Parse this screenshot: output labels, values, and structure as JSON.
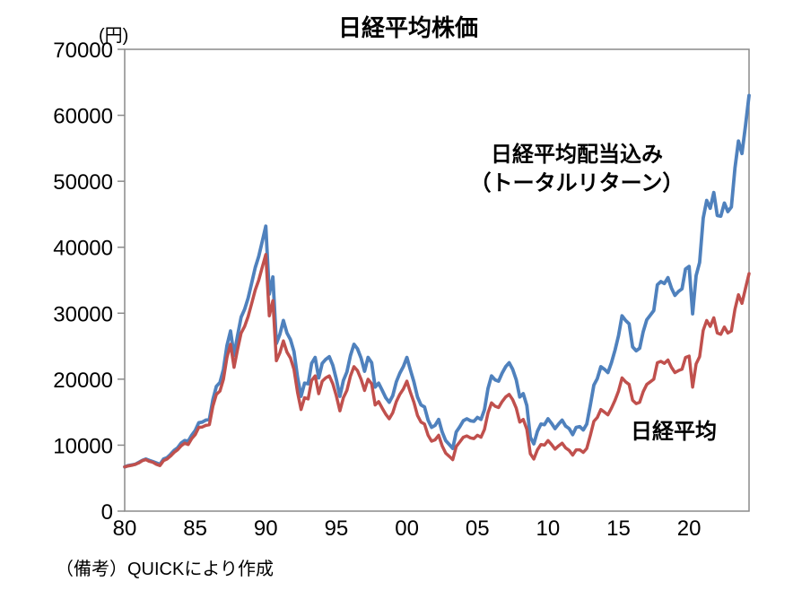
{
  "page": {
    "background_color": "#ffffff"
  },
  "chart_data": {
    "type": "line",
    "title": "日経平均株価",
    "unit_label": "(円)",
    "footnote": "（備考）QUICKにより作成",
    "xlabel": "",
    "ylabel": "",
    "ylim": [
      0,
      70000
    ],
    "xlim": [
      1980,
      2024.25
    ],
    "grid": false,
    "legend_position": "inline-annotations",
    "axis_color": "#8a8a8a",
    "text_color": "#000000",
    "y_ticks": [
      0,
      10000,
      20000,
      30000,
      40000,
      50000,
      60000,
      70000
    ],
    "y_tick_labels": [
      "0",
      "10000",
      "20000",
      "30000",
      "40000",
      "50000",
      "60000",
      "70000"
    ],
    "x_ticks": [
      1980,
      1985,
      1990,
      1995,
      2000,
      2005,
      2010,
      2015,
      2020
    ],
    "x_tick_labels": [
      "80",
      "85",
      "90",
      "95",
      "00",
      "05",
      "10",
      "15",
      "20"
    ],
    "x_start": 1980,
    "x_step": 0.25,
    "series": [
      {
        "name": "日経平均配当込み（トータルリターン）",
        "label_lines": [
          "日経平均配当込み",
          "（トータルリターン）"
        ],
        "color": "#4f81bd",
        "label_color": "#4f81bd",
        "line_width": 3.8,
        "values": [
          6700,
          6900,
          7000,
          7100,
          7400,
          7700,
          7900,
          7700,
          7500,
          7300,
          7100,
          7900,
          8100,
          8600,
          9200,
          9600,
          10300,
          10700,
          10600,
          11500,
          12200,
          13400,
          13500,
          13800,
          13900,
          16900,
          18900,
          19500,
          21500,
          25100,
          27300,
          23600,
          26600,
          29400,
          30600,
          32300,
          34600,
          36900,
          38600,
          40900,
          43200,
          32900,
          35500,
          25400,
          26800,
          28900,
          27000,
          26000,
          24200,
          20300,
          17400,
          19400,
          19300,
          22400,
          23300,
          20200,
          22400,
          23000,
          23400,
          22100,
          20000,
          17400,
          19800,
          21100,
          23600,
          25300,
          24600,
          23200,
          21200,
          23300,
          22500,
          18800,
          19400,
          18300,
          17200,
          16500,
          17500,
          19600,
          20900,
          21900,
          23300,
          21400,
          19600,
          17300,
          16100,
          15800,
          13800,
          12700,
          13000,
          13900,
          12000,
          10700,
          10100,
          9500,
          12000,
          12800,
          13700,
          14000,
          13700,
          13600,
          14200,
          13900,
          15400,
          18600,
          20500,
          19900,
          19700,
          20900,
          21900,
          22500,
          21500,
          19900,
          17300,
          17800,
          16000,
          11200,
          10200,
          12100,
          13200,
          13100,
          14000,
          13300,
          12500,
          13200,
          13800,
          12900,
          12500,
          11600,
          12700,
          12800,
          12300,
          13200,
          16100,
          19100,
          20100,
          21900,
          21500,
          21000,
          22500,
          24400,
          26600,
          29600,
          28900,
          28400,
          24900,
          24300,
          24700,
          27200,
          29000,
          29700,
          30400,
          34300,
          34800,
          34500,
          35400,
          33800,
          32700,
          33300,
          33700,
          36700,
          37100,
          29900,
          35700,
          37700,
          44400,
          47100,
          45900,
          48300,
          44800,
          44700,
          46700,
          45400,
          46100,
          52000,
          56100,
          54200,
          58500,
          63000
        ]
      },
      {
        "name": "日経平均",
        "label_lines": [
          "日経平均"
        ],
        "color": "#c0504d",
        "label_color": "#ff3b30",
        "line_width": 3.5,
        "values": [
          6700,
          6850,
          6950,
          7100,
          7300,
          7650,
          7800,
          7550,
          7400,
          7100,
          6900,
          7650,
          7900,
          8350,
          8900,
          9300,
          9900,
          10300,
          10100,
          11000,
          11600,
          12700,
          12750,
          13000,
          13100,
          15900,
          17700,
          18200,
          20000,
          23300,
          25300,
          21800,
          24500,
          27000,
          28000,
          29500,
          31500,
          33500,
          35000,
          37000,
          38900,
          29600,
          31900,
          22800,
          24000,
          25800,
          24100,
          23200,
          21500,
          18000,
          15400,
          17200,
          17000,
          19800,
          20500,
          17800,
          19700,
          20200,
          20500,
          19300,
          17500,
          15200,
          17200,
          18300,
          20500,
          21900,
          21300,
          20000,
          18300,
          20000,
          19300,
          16100,
          16600,
          15600,
          14700,
          14000,
          14900,
          16600,
          17700,
          18500,
          19700,
          18000,
          16500,
          14500,
          13500,
          13200,
          11500,
          10600,
          10800,
          11500,
          9900,
          8800,
          8300,
          7800,
          9800,
          10500,
          11200,
          11400,
          11100,
          11000,
          11500,
          11200,
          12400,
          14900,
          16400,
          15900,
          15700,
          16600,
          17300,
          17700,
          16900,
          15600,
          13500,
          13900,
          12400,
          8700,
          7900,
          9300,
          10100,
          10000,
          10700,
          10100,
          9400,
          9900,
          10300,
          9600,
          9200,
          8500,
          9300,
          9300,
          8900,
          9500,
          11500,
          13600,
          14200,
          15400,
          15000,
          14600,
          15600,
          16800,
          18200,
          20200,
          19600,
          19200,
          16800,
          16300,
          16500,
          18100,
          19200,
          19600,
          20000,
          22500,
          22700,
          22400,
          22900,
          21800,
          21000,
          21300,
          21500,
          23300,
          23500,
          18800,
          22300,
          23400,
          27400,
          28900,
          28000,
          29300,
          27000,
          26800,
          27900,
          27000,
          27300,
          30600,
          32800,
          31500,
          33800,
          36000
        ]
      }
    ]
  }
}
